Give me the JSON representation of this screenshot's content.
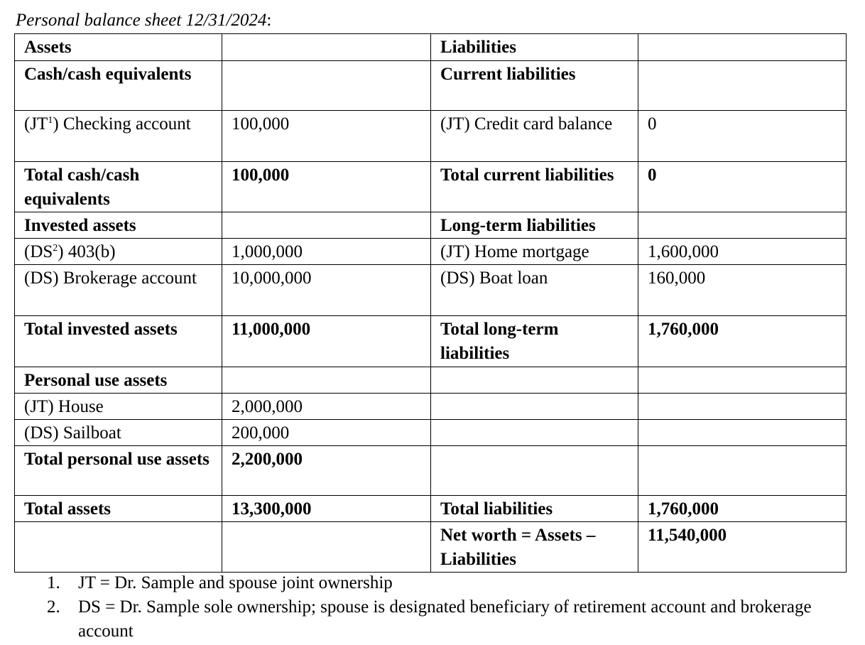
{
  "caption": {
    "title": "Personal balance sheet 12/31/2024",
    "suffix": ":"
  },
  "rows": [
    {
      "h": 38,
      "c": [
        {
          "t": "Assets",
          "b": true
        },
        {
          "t": ""
        },
        {
          "t": "Liabilities",
          "b": true
        },
        {
          "t": ""
        }
      ]
    },
    {
      "h": 70,
      "c": [
        {
          "t": "Cash/cash equivalents",
          "b": true
        },
        {
          "t": ""
        },
        {
          "t": "Current liabilities",
          "b": true
        },
        {
          "t": ""
        }
      ]
    },
    {
      "h": 72,
      "c": [
        {
          "t": "(JT",
          "sup": "1",
          "after": ") Checking account"
        },
        {
          "t": "100,000"
        },
        {
          "t": "(JT) Credit card balance"
        },
        {
          "t": "0"
        }
      ]
    },
    {
      "h": 70,
      "c": [
        {
          "t": "Total cash/cash equivalents",
          "b": true
        },
        {
          "t": "100,000",
          "b": true
        },
        {
          "t": "Total current liabilities",
          "b": true
        },
        {
          "t": "0",
          "b": true
        }
      ]
    },
    {
      "h": 36,
      "c": [
        {
          "t": "Invested assets",
          "b": true
        },
        {
          "t": ""
        },
        {
          "t": "Long-term liabilities",
          "b": true
        },
        {
          "t": ""
        }
      ]
    },
    {
      "h": 36,
      "c": [
        {
          "t": "(DS",
          "sup": "2",
          "after": ") 403(b)"
        },
        {
          "t": "1,000,000"
        },
        {
          "t": "(JT) Home mortgage"
        },
        {
          "t": "1,600,000"
        }
      ]
    },
    {
      "h": 72,
      "c": [
        {
          "t": "(DS) Brokerage account"
        },
        {
          "t": "10,000,000"
        },
        {
          "t": "(DS) Boat loan"
        },
        {
          "t": "160,000"
        }
      ]
    },
    {
      "h": 72,
      "c": [
        {
          "t": "Total invested assets",
          "b": true
        },
        {
          "t": "11,000,000",
          "b": true
        },
        {
          "t": "Total long-term liabilities",
          "b": true
        },
        {
          "t": "1,760,000",
          "b": true
        }
      ]
    },
    {
      "h": 36,
      "c": [
        {
          "t": "Personal use assets",
          "b": true
        },
        {
          "t": ""
        },
        {
          "t": ""
        },
        {
          "t": ""
        }
      ]
    },
    {
      "h": 36,
      "c": [
        {
          "t": "(JT) House"
        },
        {
          "t": "2,000,000"
        },
        {
          "t": ""
        },
        {
          "t": ""
        }
      ]
    },
    {
      "h": 36,
      "c": [
        {
          "t": "(DS) Sailboat"
        },
        {
          "t": "200,000"
        },
        {
          "t": ""
        },
        {
          "t": ""
        }
      ]
    },
    {
      "h": 70,
      "c": [
        {
          "t": "Total personal use assets",
          "b": true
        },
        {
          "t": "2,200,000",
          "b": true
        },
        {
          "t": ""
        },
        {
          "t": ""
        }
      ]
    },
    {
      "h": 36,
      "c": [
        {
          "t": "Total assets",
          "b": true
        },
        {
          "t": "13,300,000",
          "b": true
        },
        {
          "t": "Total liabilities",
          "b": true
        },
        {
          "t": "1,760,000",
          "b": true
        }
      ]
    },
    {
      "h": 70,
      "c": [
        {
          "t": ""
        },
        {
          "t": ""
        },
        {
          "t": "Net worth = Assets – Liabilities",
          "b": true
        },
        {
          "t": "11,540,000",
          "b": true
        }
      ]
    }
  ],
  "notes": [
    {
      "num": "1.",
      "text": "JT = Dr. Sample and spouse joint ownership"
    },
    {
      "num": "2.",
      "text": "DS = Dr. Sample sole ownership; spouse is designated beneficiary of retirement account and brokerage account"
    }
  ]
}
